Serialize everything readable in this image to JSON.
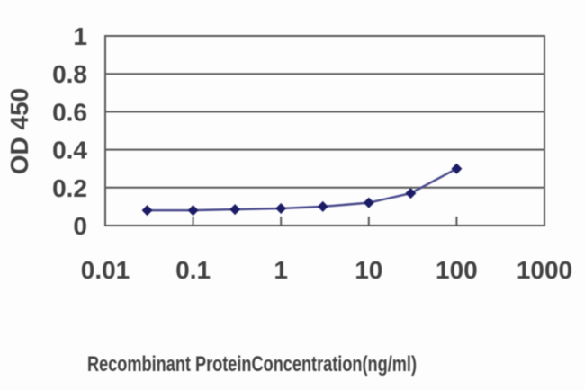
{
  "chart_data": {
    "type": "line",
    "title": "",
    "xlabel": "Recombinant ProteinConcentration(ng/ml)",
    "ylabel": "OD 450",
    "x_scale": "log",
    "xlim": [
      0.01,
      1000
    ],
    "ylim": [
      0,
      1
    ],
    "x_tick_values": [
      0.01,
      0.1,
      1,
      10,
      100,
      1000
    ],
    "x_tick_labels": [
      "0.01",
      "0.1",
      "1",
      "10",
      "100",
      "1000"
    ],
    "y_tick_values": [
      0,
      0.2,
      0.4,
      0.6,
      0.8,
      1
    ],
    "y_tick_labels": [
      "0",
      "0.2",
      "0.4",
      "0.6",
      "0.8",
      "1"
    ],
    "grid": "horizontal-only",
    "legend": "none",
    "series": [
      {
        "name": "OD 450",
        "marker": "diamond",
        "x": [
          0.03,
          0.1,
          0.3,
          1,
          3,
          10,
          30,
          100
        ],
        "y": [
          0.08,
          0.08,
          0.085,
          0.09,
          0.1,
          0.12,
          0.17,
          0.3
        ]
      }
    ]
  },
  "colors": {
    "background": "#fdfdfd",
    "axis_border": "#595959",
    "gridline": "#595959",
    "tick_text": "#424242",
    "series_line": "#4c4c8e",
    "series_marker": "#1c1c66"
  }
}
